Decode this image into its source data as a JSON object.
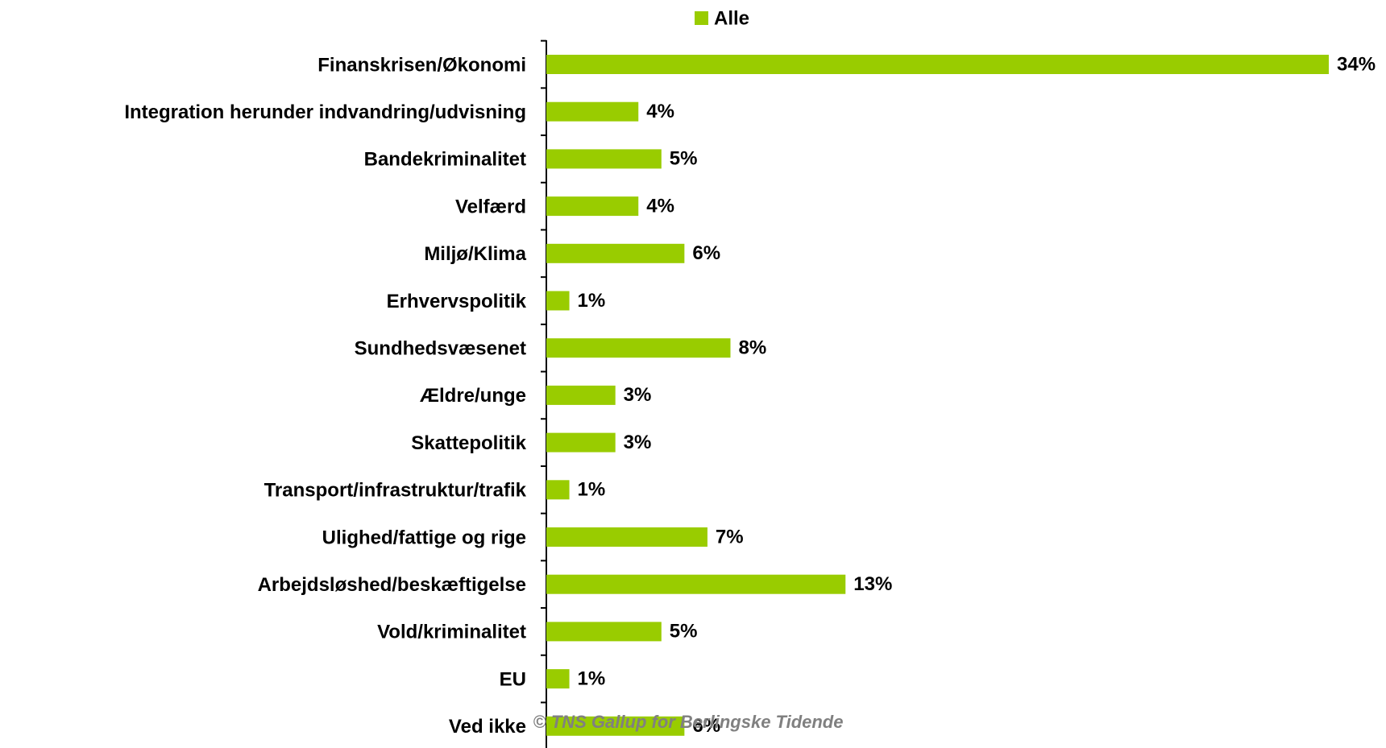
{
  "chart_data": {
    "type": "hbar",
    "legend": "Alle",
    "footer": "© TNS Gallup for Berlingske Tidende",
    "color": "#99cc00",
    "categories": [
      "Finanskrisen/Økonomi",
      "Integration herunder indvandring/udvisning",
      "Bandekriminalitet",
      "Velfærd",
      "Miljø/Klima",
      "Erhvervspolitik",
      "Sundhedsvæsenet",
      "Ældre/unge",
      "Skattepolitik",
      "Transport/infrastruktur/trafik",
      "Ulighed/fattige og rige",
      "Arbejdsløshed/beskæftigelse",
      "Vold/kriminalitet",
      "EU",
      "Ved ikke"
    ],
    "values": [
      34,
      4,
      5,
      4,
      6,
      1,
      8,
      3,
      3,
      1,
      7,
      13,
      5,
      1,
      6
    ],
    "value_labels": [
      "34%",
      "4%",
      "5%",
      "4%",
      "6%",
      "1%",
      "8%",
      "3%",
      "3%",
      "1%",
      "7%",
      "13%",
      "5%",
      "1%",
      "6%"
    ],
    "xlim": [
      0,
      34
    ]
  }
}
